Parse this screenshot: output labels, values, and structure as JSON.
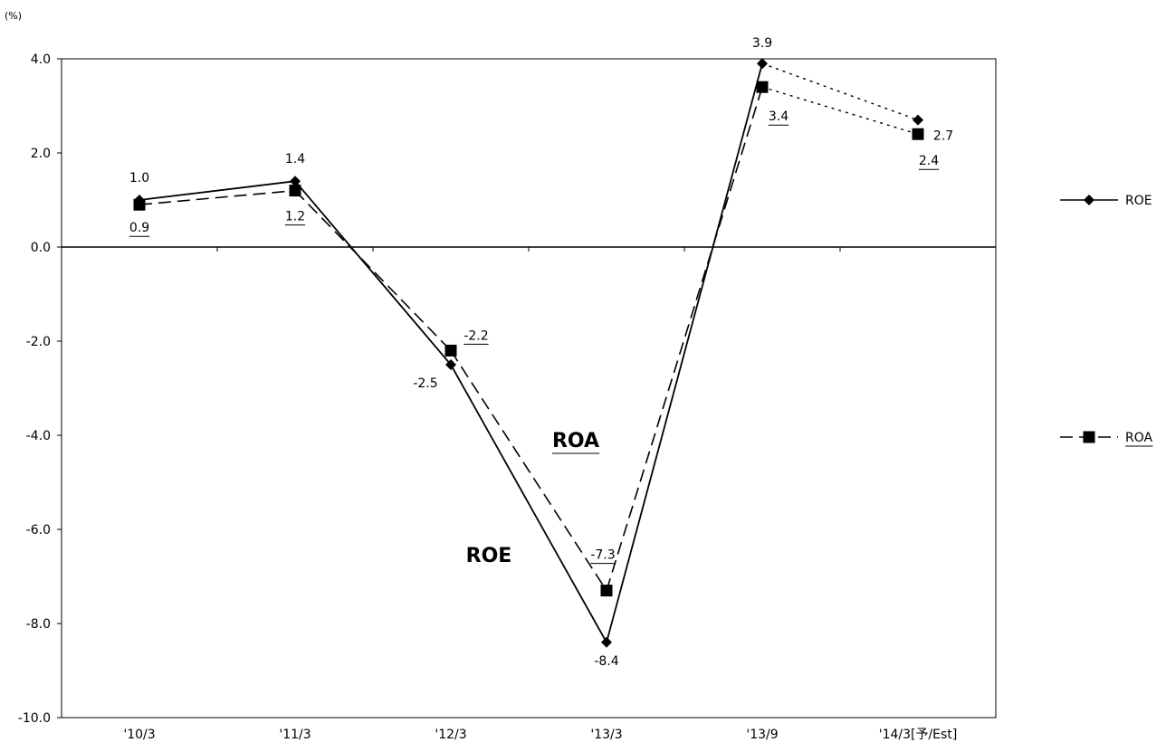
{
  "chart_data": {
    "type": "line",
    "unit_label": "(%)",
    "categories": [
      "'10/3",
      "'11/3",
      "'12/3",
      "'13/3",
      "'13/9",
      "'14/3[予/Est]"
    ],
    "ylim": [
      -10,
      4
    ],
    "yticks": [
      "4.0",
      "2.0",
      "0.0",
      "-2.0",
      "-4.0",
      "-6.0",
      "-8.0",
      "-10.0"
    ],
    "series": [
      {
        "name": "ROE",
        "marker": "diamond",
        "line_style": "solid",
        "estimate_line_style": "dotted",
        "values": [
          1.0,
          1.4,
          -2.5,
          -8.4,
          3.9,
          2.7
        ],
        "labels": [
          "1.0",
          "1.4",
          "-2.5",
          "-8.4",
          "3.9",
          "2.7"
        ],
        "underline_labels": false
      },
      {
        "name": "ROA",
        "marker": "square",
        "line_style": "dashed",
        "estimate_line_style": "dotted",
        "values": [
          0.9,
          1.2,
          -2.2,
          -7.3,
          3.4,
          2.4
        ],
        "labels": [
          "0.9",
          "1.2",
          "-2.2",
          "-7.3",
          "3.4",
          "2.4"
        ],
        "underline_labels": true
      }
    ],
    "annotations": [
      {
        "text": "ROA",
        "underline": true
      },
      {
        "text": "ROE",
        "underline": false
      }
    ],
    "legend": {
      "placement": "right",
      "entries": [
        {
          "label": "ROE",
          "underline": false
        },
        {
          "label": "ROA",
          "underline": true
        }
      ]
    },
    "grid": false
  }
}
